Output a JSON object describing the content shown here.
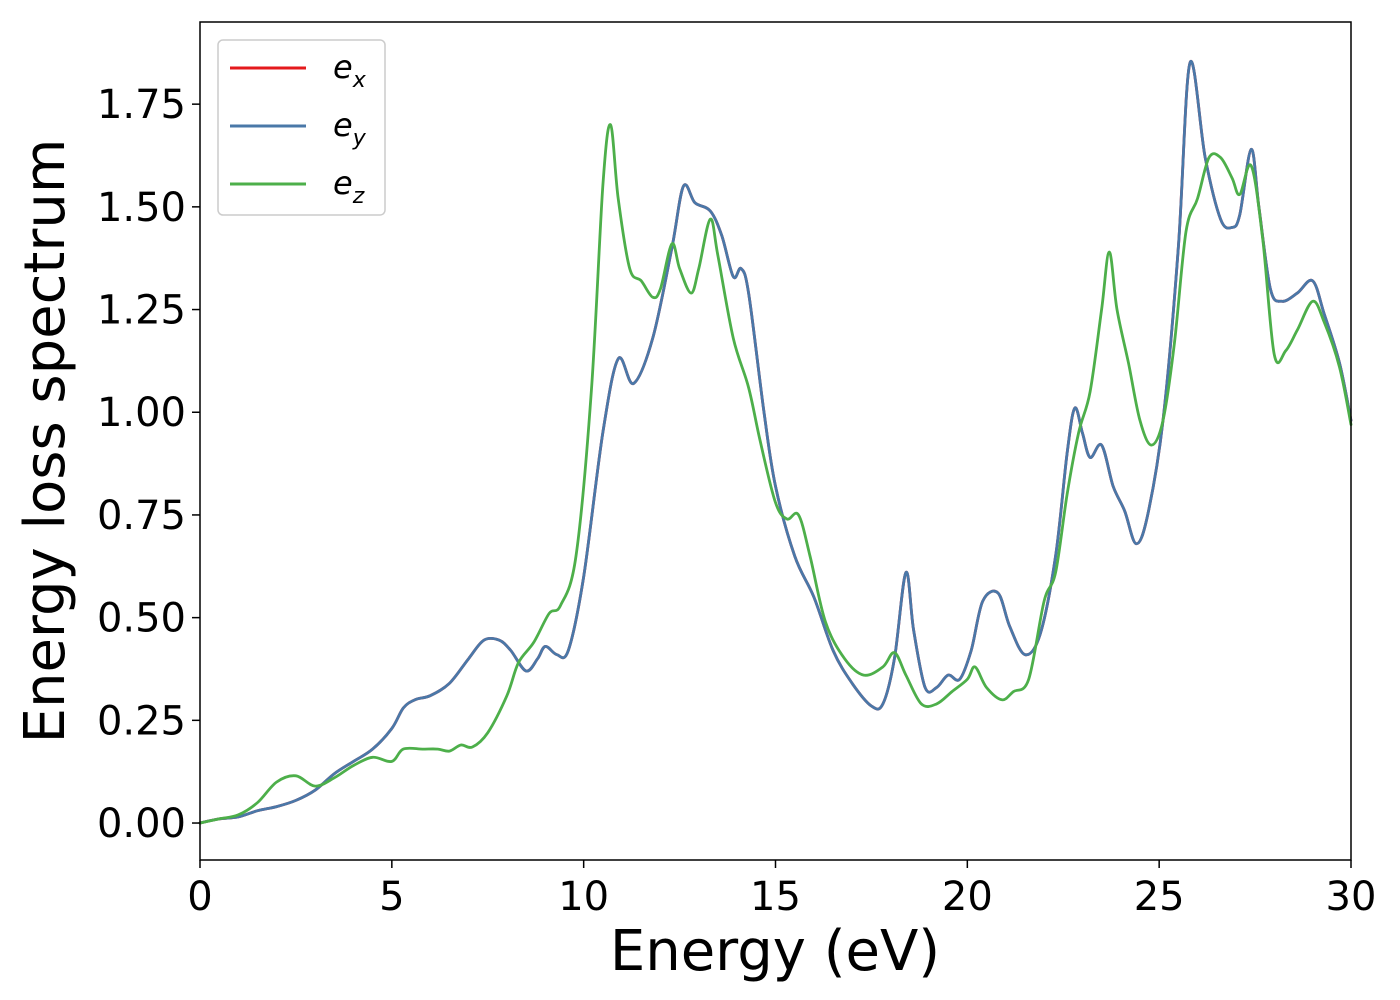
{
  "chart_data": {
    "type": "line",
    "title": "",
    "xlabel": "Energy (eV)",
    "ylabel": "Energy loss spectrum",
    "xlim": [
      0,
      30
    ],
    "ylim": [
      -0.09,
      1.95
    ],
    "xticks": [
      0,
      5,
      10,
      15,
      20,
      25,
      30
    ],
    "xtick_labels": [
      "0",
      "5",
      "10",
      "15",
      "20",
      "25",
      "30"
    ],
    "yticks": [
      0.0,
      0.25,
      0.5,
      0.75,
      1.0,
      1.25,
      1.5,
      1.75
    ],
    "ytick_labels": [
      "0.00",
      "0.25",
      "0.50",
      "0.75",
      "1.00",
      "1.25",
      "1.50",
      "1.75"
    ],
    "grid": false,
    "legend": {
      "placement": "top-left"
    },
    "series": [
      {
        "name": "e",
        "subscript": "x",
        "color": "#e41a1c",
        "points": [
          [
            0,
            0
          ],
          [
            0.5,
            0.01
          ],
          [
            1,
            0.015
          ],
          [
            1.5,
            0.03
          ],
          [
            2,
            0.04
          ],
          [
            2.5,
            0.055
          ],
          [
            3,
            0.08
          ],
          [
            3.5,
            0.12
          ],
          [
            4,
            0.15
          ],
          [
            4.5,
            0.18
          ],
          [
            5,
            0.23
          ],
          [
            5.3,
            0.28
          ],
          [
            5.6,
            0.3
          ],
          [
            6,
            0.31
          ],
          [
            6.5,
            0.34
          ],
          [
            7,
            0.4
          ],
          [
            7.4,
            0.445
          ],
          [
            7.8,
            0.445
          ],
          [
            8.1,
            0.42
          ],
          [
            8.5,
            0.37
          ],
          [
            8.8,
            0.4
          ],
          [
            9,
            0.43
          ],
          [
            9.3,
            0.41
          ],
          [
            9.6,
            0.42
          ],
          [
            10,
            0.6
          ],
          [
            10.5,
            0.95
          ],
          [
            10.9,
            1.13
          ],
          [
            11.3,
            1.07
          ],
          [
            11.8,
            1.18
          ],
          [
            12.3,
            1.4
          ],
          [
            12.6,
            1.55
          ],
          [
            12.9,
            1.51
          ],
          [
            13.3,
            1.49
          ],
          [
            13.6,
            1.43
          ],
          [
            13.9,
            1.33
          ],
          [
            14.1,
            1.35
          ],
          [
            14.3,
            1.29
          ],
          [
            14.7,
            1.0
          ],
          [
            15.0,
            0.82
          ],
          [
            15.5,
            0.65
          ],
          [
            16,
            0.55
          ],
          [
            16.5,
            0.42
          ],
          [
            17,
            0.34
          ],
          [
            17.5,
            0.285
          ],
          [
            17.8,
            0.29
          ],
          [
            18.1,
            0.4
          ],
          [
            18.4,
            0.61
          ],
          [
            18.6,
            0.47
          ],
          [
            18.9,
            0.33
          ],
          [
            19.2,
            0.33
          ],
          [
            19.5,
            0.36
          ],
          [
            19.8,
            0.35
          ],
          [
            20.1,
            0.42
          ],
          [
            20.4,
            0.54
          ],
          [
            20.8,
            0.56
          ],
          [
            21.1,
            0.48
          ],
          [
            21.5,
            0.41
          ],
          [
            21.9,
            0.46
          ],
          [
            22.3,
            0.65
          ],
          [
            22.6,
            0.9
          ],
          [
            22.8,
            1.01
          ],
          [
            23.0,
            0.95
          ],
          [
            23.2,
            0.89
          ],
          [
            23.5,
            0.92
          ],
          [
            23.8,
            0.82
          ],
          [
            24.1,
            0.76
          ],
          [
            24.4,
            0.68
          ],
          [
            24.7,
            0.75
          ],
          [
            25.1,
            0.98
          ],
          [
            25.5,
            1.4
          ],
          [
            25.8,
            1.85
          ],
          [
            26.2,
            1.62
          ],
          [
            26.6,
            1.47
          ],
          [
            26.9,
            1.45
          ],
          [
            27.1,
            1.48
          ],
          [
            27.4,
            1.64
          ],
          [
            27.6,
            1.5
          ],
          [
            27.9,
            1.3
          ],
          [
            28.2,
            1.27
          ],
          [
            28.6,
            1.29
          ],
          [
            29.0,
            1.32
          ],
          [
            29.3,
            1.24
          ],
          [
            29.7,
            1.12
          ],
          [
            30,
            0.98
          ]
        ]
      },
      {
        "name": "e",
        "subscript": "y",
        "color": "#4a78a8",
        "points": [
          [
            0,
            0
          ],
          [
            0.5,
            0.01
          ],
          [
            1,
            0.015
          ],
          [
            1.5,
            0.03
          ],
          [
            2,
            0.04
          ],
          [
            2.5,
            0.055
          ],
          [
            3,
            0.08
          ],
          [
            3.5,
            0.12
          ],
          [
            4,
            0.15
          ],
          [
            4.5,
            0.18
          ],
          [
            5,
            0.23
          ],
          [
            5.3,
            0.28
          ],
          [
            5.6,
            0.3
          ],
          [
            6,
            0.31
          ],
          [
            6.5,
            0.34
          ],
          [
            7,
            0.4
          ],
          [
            7.4,
            0.445
          ],
          [
            7.8,
            0.445
          ],
          [
            8.1,
            0.42
          ],
          [
            8.5,
            0.37
          ],
          [
            8.8,
            0.4
          ],
          [
            9,
            0.43
          ],
          [
            9.3,
            0.41
          ],
          [
            9.6,
            0.42
          ],
          [
            10,
            0.6
          ],
          [
            10.5,
            0.95
          ],
          [
            10.9,
            1.13
          ],
          [
            11.3,
            1.07
          ],
          [
            11.8,
            1.18
          ],
          [
            12.3,
            1.4
          ],
          [
            12.6,
            1.55
          ],
          [
            12.9,
            1.51
          ],
          [
            13.3,
            1.49
          ],
          [
            13.6,
            1.43
          ],
          [
            13.9,
            1.33
          ],
          [
            14.1,
            1.35
          ],
          [
            14.3,
            1.29
          ],
          [
            14.7,
            1.0
          ],
          [
            15.0,
            0.82
          ],
          [
            15.5,
            0.65
          ],
          [
            16,
            0.55
          ],
          [
            16.5,
            0.42
          ],
          [
            17,
            0.34
          ],
          [
            17.5,
            0.285
          ],
          [
            17.8,
            0.29
          ],
          [
            18.1,
            0.4
          ],
          [
            18.4,
            0.61
          ],
          [
            18.6,
            0.47
          ],
          [
            18.9,
            0.33
          ],
          [
            19.2,
            0.33
          ],
          [
            19.5,
            0.36
          ],
          [
            19.8,
            0.35
          ],
          [
            20.1,
            0.42
          ],
          [
            20.4,
            0.54
          ],
          [
            20.8,
            0.56
          ],
          [
            21.1,
            0.48
          ],
          [
            21.5,
            0.41
          ],
          [
            21.9,
            0.46
          ],
          [
            22.3,
            0.65
          ],
          [
            22.6,
            0.9
          ],
          [
            22.8,
            1.01
          ],
          [
            23.0,
            0.95
          ],
          [
            23.2,
            0.89
          ],
          [
            23.5,
            0.92
          ],
          [
            23.8,
            0.82
          ],
          [
            24.1,
            0.76
          ],
          [
            24.4,
            0.68
          ],
          [
            24.7,
            0.75
          ],
          [
            25.1,
            0.98
          ],
          [
            25.5,
            1.4
          ],
          [
            25.8,
            1.85
          ],
          [
            26.2,
            1.62
          ],
          [
            26.6,
            1.47
          ],
          [
            26.9,
            1.45
          ],
          [
            27.1,
            1.48
          ],
          [
            27.4,
            1.64
          ],
          [
            27.6,
            1.5
          ],
          [
            27.9,
            1.3
          ],
          [
            28.2,
            1.27
          ],
          [
            28.6,
            1.29
          ],
          [
            29.0,
            1.32
          ],
          [
            29.3,
            1.24
          ],
          [
            29.7,
            1.12
          ],
          [
            30,
            0.98
          ]
        ]
      },
      {
        "name": "e",
        "subscript": "z",
        "color": "#4daf4a",
        "points": [
          [
            0,
            0
          ],
          [
            0.5,
            0.01
          ],
          [
            1,
            0.02
          ],
          [
            1.5,
            0.05
          ],
          [
            2,
            0.1
          ],
          [
            2.5,
            0.115
          ],
          [
            3,
            0.09
          ],
          [
            3.5,
            0.11
          ],
          [
            4,
            0.14
          ],
          [
            4.5,
            0.16
          ],
          [
            5,
            0.15
          ],
          [
            5.3,
            0.18
          ],
          [
            5.8,
            0.18
          ],
          [
            6.2,
            0.18
          ],
          [
            6.5,
            0.175
          ],
          [
            6.8,
            0.19
          ],
          [
            7.1,
            0.185
          ],
          [
            7.5,
            0.22
          ],
          [
            8,
            0.31
          ],
          [
            8.3,
            0.39
          ],
          [
            8.7,
            0.44
          ],
          [
            9.1,
            0.51
          ],
          [
            9.4,
            0.53
          ],
          [
            9.8,
            0.65
          ],
          [
            10.2,
            1.05
          ],
          [
            10.5,
            1.55
          ],
          [
            10.7,
            1.7
          ],
          [
            10.9,
            1.52
          ],
          [
            11.2,
            1.35
          ],
          [
            11.5,
            1.32
          ],
          [
            11.8,
            1.28
          ],
          [
            12.0,
            1.3
          ],
          [
            12.3,
            1.41
          ],
          [
            12.5,
            1.35
          ],
          [
            12.8,
            1.29
          ],
          [
            13.0,
            1.35
          ],
          [
            13.3,
            1.47
          ],
          [
            13.5,
            1.38
          ],
          [
            13.9,
            1.18
          ],
          [
            14.3,
            1.06
          ],
          [
            14.6,
            0.93
          ],
          [
            15.0,
            0.78
          ],
          [
            15.3,
            0.74
          ],
          [
            15.6,
            0.75
          ],
          [
            15.9,
            0.65
          ],
          [
            16.3,
            0.49
          ],
          [
            16.8,
            0.4
          ],
          [
            17.3,
            0.36
          ],
          [
            17.8,
            0.38
          ],
          [
            18.1,
            0.415
          ],
          [
            18.4,
            0.36
          ],
          [
            18.8,
            0.29
          ],
          [
            19.2,
            0.29
          ],
          [
            19.6,
            0.32
          ],
          [
            20.0,
            0.35
          ],
          [
            20.2,
            0.38
          ],
          [
            20.5,
            0.33
          ],
          [
            20.9,
            0.3
          ],
          [
            21.2,
            0.32
          ],
          [
            21.6,
            0.35
          ],
          [
            22.0,
            0.54
          ],
          [
            22.3,
            0.61
          ],
          [
            22.6,
            0.8
          ],
          [
            22.9,
            0.95
          ],
          [
            23.2,
            1.05
          ],
          [
            23.5,
            1.25
          ],
          [
            23.7,
            1.39
          ],
          [
            23.9,
            1.25
          ],
          [
            24.2,
            1.12
          ],
          [
            24.5,
            0.98
          ],
          [
            24.8,
            0.92
          ],
          [
            25.1,
            0.98
          ],
          [
            25.4,
            1.17
          ],
          [
            25.7,
            1.44
          ],
          [
            26.0,
            1.52
          ],
          [
            26.3,
            1.62
          ],
          [
            26.6,
            1.62
          ],
          [
            26.9,
            1.57
          ],
          [
            27.1,
            1.53
          ],
          [
            27.4,
            1.6
          ],
          [
            27.7,
            1.42
          ],
          [
            28.0,
            1.14
          ],
          [
            28.3,
            1.15
          ],
          [
            28.6,
            1.2
          ],
          [
            29.0,
            1.27
          ],
          [
            29.3,
            1.22
          ],
          [
            29.7,
            1.11
          ],
          [
            30,
            0.97
          ]
        ]
      }
    ]
  }
}
